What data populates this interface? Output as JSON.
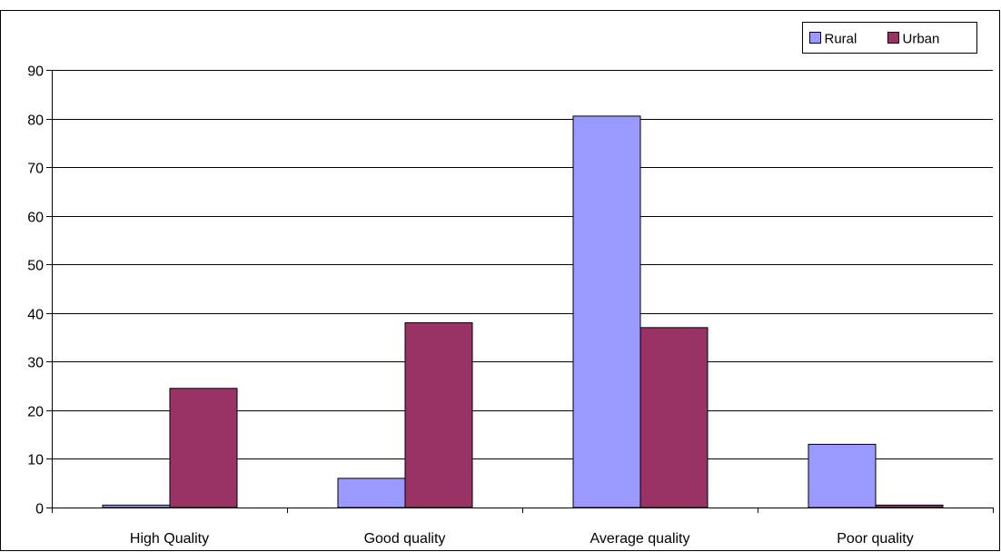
{
  "chart_data": {
    "type": "bar",
    "categories": [
      "High Quality",
      "Good quality",
      "Average quality",
      "Poor quality"
    ],
    "series": [
      {
        "name": "Rural",
        "color": "#9999ff",
        "values": [
          0.5,
          6,
          80.5,
          13
        ]
      },
      {
        "name": "Urban",
        "color": "#993366",
        "values": [
          24.5,
          38,
          37,
          0.5
        ]
      }
    ],
    "title": "",
    "xlabel": "",
    "ylabel": "",
    "ylim": [
      0,
      90
    ],
    "yticks": [
      "0",
      "10",
      "20",
      "30",
      "40",
      "50",
      "60",
      "70",
      "80",
      "90"
    ],
    "grid": true,
    "legend_position": "top-right"
  }
}
